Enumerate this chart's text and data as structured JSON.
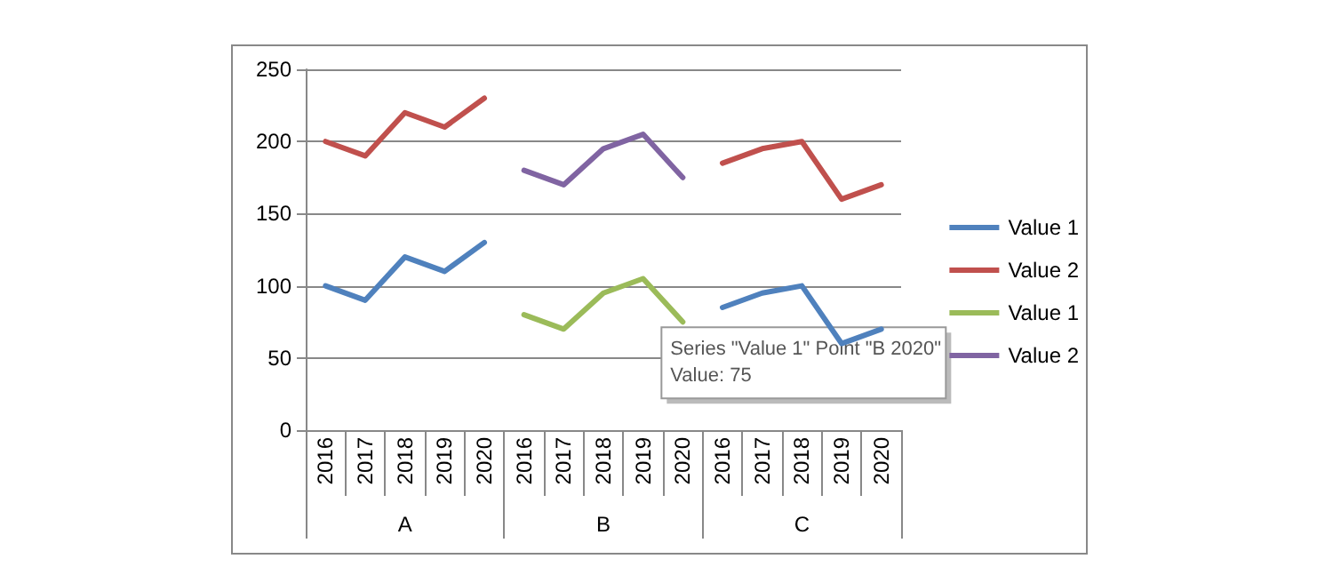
{
  "chart_data": {
    "type": "line",
    "categories": [
      "2016",
      "2017",
      "2018",
      "2019",
      "2020",
      "2016",
      "2017",
      "2018",
      "2019",
      "2020",
      "2016",
      "2017",
      "2018",
      "2019",
      "2020"
    ],
    "series": [
      {
        "name": "Value 1",
        "color": "#4f81bd",
        "values": [
          100,
          90,
          120,
          110,
          130,
          null,
          null,
          null,
          null,
          null,
          85,
          95,
          100,
          60,
          70
        ]
      },
      {
        "name": "Value 2",
        "color": "#c0504d",
        "values": [
          200,
          190,
          220,
          210,
          230,
          null,
          null,
          null,
          null,
          null,
          185,
          195,
          200,
          160,
          170
        ]
      },
      {
        "name": "Value 1",
        "color": "#9bbb59",
        "values": [
          null,
          null,
          null,
          null,
          null,
          80,
          70,
          95,
          105,
          75,
          null,
          null,
          null,
          null,
          null
        ]
      },
      {
        "name": "Value 2",
        "color": "#8064a2",
        "values": [
          null,
          null,
          null,
          null,
          null,
          180,
          170,
          195,
          205,
          175,
          null,
          null,
          null,
          null,
          null
        ]
      }
    ],
    "ylim": [
      0,
      250
    ],
    "yticks": [
      0,
      50,
      100,
      150,
      200,
      250
    ],
    "grid": "y",
    "legend": "right",
    "marker": "none",
    "line_style": "solid",
    "annotations": [
      "A",
      "B",
      "C",
      "Series \"Value 1\" Point \"B 2020\"\nValue: 75"
    ]
  }
}
